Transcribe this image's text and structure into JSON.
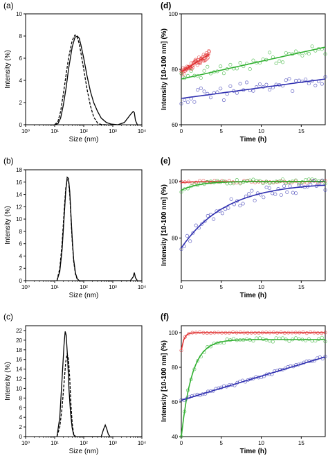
{
  "chart_data": [
    {
      "type": "line",
      "panel_label": "(a)",
      "xlabel": "Size (nm)",
      "ylabel": "Intensity (%)",
      "x_scale": "log",
      "xlim": [
        1,
        10000
      ],
      "ylim": [
        0,
        10
      ],
      "x_ticks": [
        "10⁰",
        "10¹",
        "10²",
        "10³",
        "10⁴"
      ],
      "y_ticks": [
        "0",
        "2",
        "4",
        "6",
        "8",
        "10"
      ],
      "series": [
        {
          "style": "solid",
          "x": [
            10,
            13,
            16,
            20,
            25,
            30,
            40,
            50,
            60,
            70,
            80,
            100,
            130,
            170,
            220,
            300,
            400,
            600,
            900,
            1500,
            2500,
            4000,
            5000,
            5500,
            6000,
            7000
          ],
          "y": [
            0,
            0.1,
            0.6,
            1.8,
            3.4,
            5.0,
            7.0,
            7.9,
            8.0,
            7.8,
            7.2,
            6.0,
            4.4,
            3.0,
            2.0,
            1.2,
            0.6,
            0.2,
            0.05,
            0,
            0.2,
            0.9,
            1.2,
            1.1,
            0.4,
            0
          ]
        },
        {
          "style": "dashed",
          "x": [
            10,
            13,
            16,
            20,
            25,
            30,
            40,
            50,
            60,
            70,
            80,
            100,
            130,
            170,
            220,
            300,
            400,
            600
          ],
          "y": [
            0,
            0.3,
            1.2,
            2.8,
            4.6,
            6.0,
            7.6,
            8.1,
            7.9,
            7.3,
            6.5,
            5.0,
            3.2,
            1.7,
            0.7,
            0.15,
            0.02,
            0
          ]
        }
      ]
    },
    {
      "type": "line",
      "panel_label": "(b)",
      "xlabel": "Size (nm)",
      "ylabel": "Intensity (%)",
      "x_scale": "log",
      "xlim": [
        1,
        10000
      ],
      "ylim": [
        0,
        18
      ],
      "x_ticks": [
        "10⁰",
        "10¹",
        "10²",
        "10³",
        "10⁴"
      ],
      "y_ticks": [
        "0",
        "2",
        "4",
        "6",
        "8",
        "10",
        "12",
        "14",
        "16",
        "18"
      ],
      "series": [
        {
          "style": "solid",
          "x": [
            12,
            15,
            18,
            21,
            24,
            27,
            30,
            33,
            36,
            40,
            45,
            52,
            60,
            70,
            4000,
            5000,
            5500,
            6000,
            7000
          ],
          "y": [
            0,
            1.5,
            5,
            10,
            14.5,
            16.8,
            16.6,
            14.5,
            11,
            7,
            3.5,
            1.2,
            0.3,
            0,
            0,
            0.6,
            1.3,
            0.5,
            0
          ]
        },
        {
          "style": "dashed",
          "x": [
            12,
            15,
            18,
            21,
            24,
            27,
            30,
            33,
            36,
            40,
            45,
            52,
            60,
            70
          ],
          "y": [
            0,
            2,
            6,
            11,
            15,
            16.4,
            16.2,
            14,
            10.5,
            6.5,
            3.2,
            1.0,
            0.2,
            0
          ]
        }
      ]
    },
    {
      "type": "line",
      "panel_label": "(c)",
      "xlabel": "Size (nm)",
      "ylabel": "Intensity (%)",
      "x_scale": "log",
      "xlim": [
        1,
        10000
      ],
      "ylim": [
        0,
        23
      ],
      "x_ticks": [
        "10⁰",
        "10¹",
        "10²",
        "10³",
        "10⁴"
      ],
      "y_ticks": [
        "0",
        "2",
        "4",
        "6",
        "8",
        "10",
        "12",
        "14",
        "16",
        "18",
        "20",
        "22"
      ],
      "series": [
        {
          "style": "solid",
          "x": [
            12,
            15,
            18,
            21,
            23,
            25,
            28,
            31,
            35,
            40,
            45,
            50,
            400,
            480,
            550,
            620,
            700,
            800
          ],
          "y": [
            0,
            4,
            12,
            19,
            21.8,
            21,
            16,
            10,
            5,
            1.8,
            0.4,
            0,
            0,
            1.5,
            2.4,
            1.6,
            0.5,
            0
          ]
        },
        {
          "style": "dashed",
          "x": [
            12,
            15,
            18,
            21,
            24,
            27,
            30,
            33,
            36,
            40,
            45,
            52
          ],
          "y": [
            0,
            2,
            6,
            11,
            15.5,
            17.2,
            16,
            12,
            7,
            2.8,
            0.6,
            0
          ]
        }
      ]
    },
    {
      "type": "scatter",
      "panel_label": "(d)",
      "xlabel": "Time (h)",
      "ylabel": "Intensity [10-100 nm] (%)",
      "xlim": [
        0,
        18
      ],
      "ylim": [
        60,
        100
      ],
      "x_ticks": [
        "0",
        "5",
        "10",
        "15"
      ],
      "y_ticks": [
        "60",
        "80",
        "100"
      ],
      "series": [
        {
          "color": "#e03030",
          "x0": 0,
          "x1": 3.5,
          "fit": [
            79,
            85.5
          ],
          "noise": 1.3,
          "n": 60
        },
        {
          "color": "#30b030",
          "x0": 0,
          "x1": 18,
          "fit": [
            76.5,
            88
          ],
          "noise": 2.6,
          "n": 45
        },
        {
          "color": "#3030b0",
          "x0": 0,
          "x1": 18,
          "fit": [
            69.5,
            76.5
          ],
          "noise": 2.8,
          "n": 45
        }
      ]
    },
    {
      "type": "scatter",
      "panel_label": "(e)",
      "xlabel": "Time (h)",
      "ylabel": "Intensity [10-100 nm] (%)",
      "xlim": [
        0,
        18
      ],
      "ylim": [
        65,
        104
      ],
      "x_ticks": [
        "0",
        "5",
        "10",
        "15"
      ],
      "y_ticks": [
        "80",
        "100"
      ],
      "series": [
        {
          "color": "#e03030",
          "model": "exp",
          "a": 99.5,
          "b": 99.8,
          "k": 1.0,
          "noise": 0.4,
          "n": 40
        },
        {
          "color": "#30b030",
          "model": "exp",
          "a": 96.8,
          "b": 99.9,
          "k": 0.45,
          "noise": 0.8,
          "n": 45
        },
        {
          "color": "#3030b0",
          "model": "exp",
          "a": 76.5,
          "b": 99.5,
          "k": 0.18,
          "noise": 2.0,
          "n": 50
        }
      ]
    },
    {
      "type": "scatter",
      "panel_label": "(f)",
      "xlabel": "Time (h)",
      "ylabel": "Intensity [10-100 nm] (%)",
      "xlim": [
        0,
        18
      ],
      "ylim": [
        40,
        104
      ],
      "x_ticks": [
        "0",
        "5",
        "10",
        "15"
      ],
      "y_ticks": [
        "40",
        "60",
        "80",
        "100"
      ],
      "series": [
        {
          "color": "#e03030",
          "model": "exp",
          "a": 90,
          "b": 100,
          "k": 3.0,
          "noise": 0.3,
          "n": 40
        },
        {
          "color": "#30b030",
          "model": "exp",
          "a": 40,
          "b": 96,
          "k": 0.75,
          "noise": 1.2,
          "n": 45
        },
        {
          "color": "#3030b0",
          "model": "line",
          "a": 61,
          "b": 86,
          "noise": 0.8,
          "n": 55
        }
      ]
    }
  ]
}
